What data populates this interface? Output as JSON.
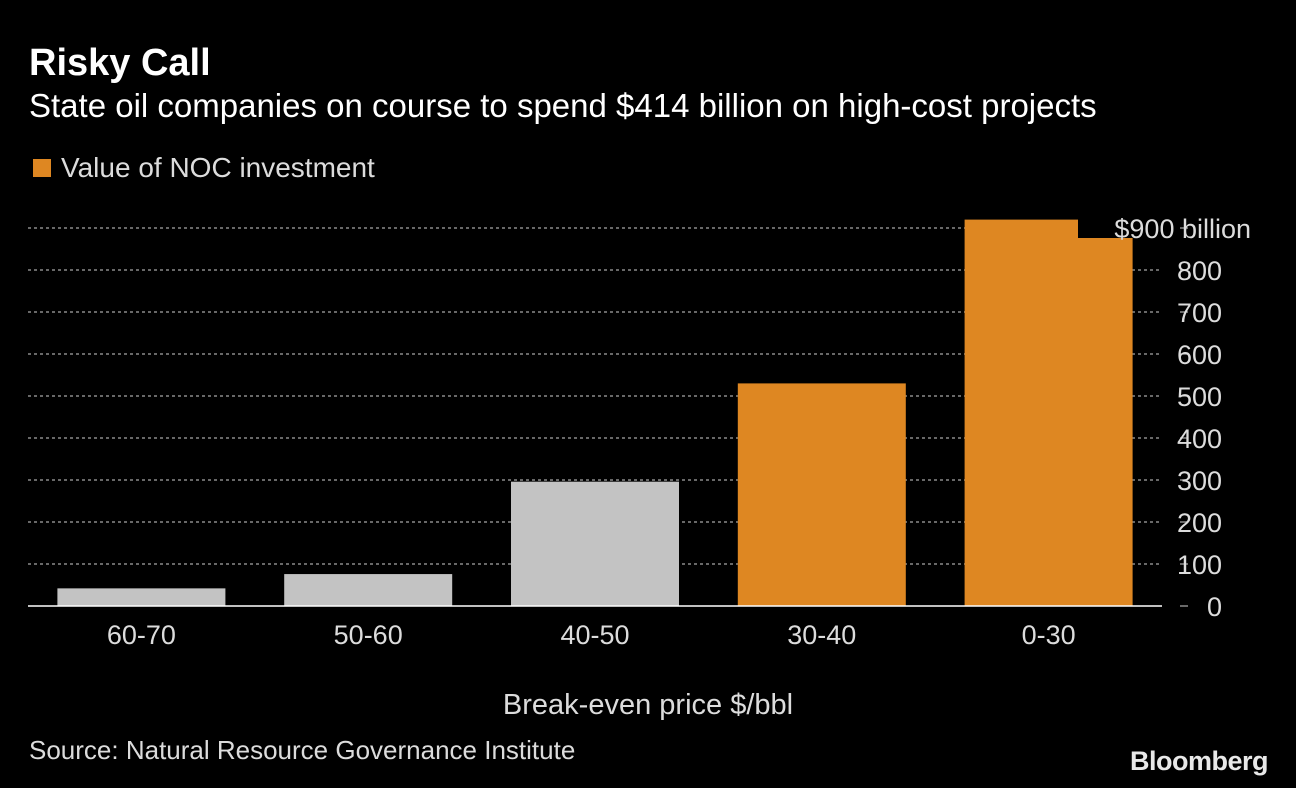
{
  "header": {
    "title": "Risky Call",
    "subtitle": "State oil companies on course to spend $414 billion on high-cost projects"
  },
  "legend": {
    "label": "Value of NOC investment",
    "color": "#de8722"
  },
  "footer": {
    "source": "Source: Natural Resource Governance Institute",
    "brand": "Bloomberg"
  },
  "chart_data": {
    "type": "bar",
    "title": "Risky Call",
    "subtitle": "State oil companies on course to spend $414 billion on high-cost projects",
    "xlabel": "Break-even price $/bbl",
    "ylabel": "",
    "ylim": [
      0,
      900
    ],
    "yticks": [
      0,
      100,
      200,
      300,
      400,
      500,
      600,
      700,
      800,
      900
    ],
    "ytick_labels": [
      "0",
      "100",
      "200",
      "300",
      "400",
      "500",
      "600",
      "700",
      "800",
      "$900 billion"
    ],
    "categories": [
      "60-70",
      "50-60",
      "40-50",
      "30-40",
      "0-30"
    ],
    "values": [
      42,
      76,
      296,
      530,
      920
    ],
    "highlighted": [
      false,
      false,
      false,
      true,
      true
    ],
    "colors": {
      "highlight": "#de8722",
      "default": "#c3c3c3",
      "grid": "#8a8a8a",
      "text": "#dcdcdc"
    },
    "grid": true,
    "legend": "top-left"
  }
}
